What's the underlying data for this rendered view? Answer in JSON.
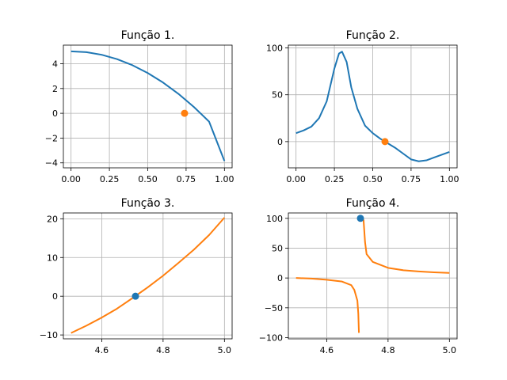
{
  "colors": {
    "blue": "#1f77b4",
    "orange": "#ff7f0e",
    "grid": "#b0b0b0"
  },
  "chart_data": [
    {
      "type": "line",
      "title": "Função 1.",
      "xlim": [
        -0.05,
        1.05
      ],
      "ylim": [
        -4.4,
        5.5
      ],
      "grid": true,
      "x_ticks": [
        0.0,
        0.25,
        0.5,
        0.75,
        1.0
      ],
      "x_tick_labels": [
        "0.00",
        "0.25",
        "0.50",
        "0.75",
        "1.00"
      ],
      "y_ticks": [
        -4,
        -2,
        0,
        2,
        4
      ],
      "y_tick_labels": [
        "−4",
        "−2",
        "0",
        "2",
        "4"
      ],
      "series": [
        {
          "color": "blue",
          "points": [
            [
              0,
              5.0
            ],
            [
              0.1,
              4.93
            ],
            [
              0.2,
              4.72
            ],
            [
              0.3,
              4.37
            ],
            [
              0.4,
              3.88
            ],
            [
              0.5,
              3.25
            ],
            [
              0.6,
              2.48
            ],
            [
              0.7,
              1.57
            ],
            [
              0.8,
              0.52
            ],
            [
              0.9,
              -0.67
            ],
            [
              1.0,
              -3.85
            ]
          ]
        }
      ],
      "markers": [
        {
          "x": 0.74,
          "y": 0.0,
          "color": "orange"
        }
      ]
    },
    {
      "type": "line",
      "title": "Função 2.",
      "xlim": [
        -0.05,
        1.05
      ],
      "ylim": [
        -28,
        103
      ],
      "grid": true,
      "x_ticks": [
        0.0,
        0.25,
        0.5,
        0.75,
        1.0
      ],
      "x_tick_labels": [
        "0.00",
        "0.25",
        "0.50",
        "0.75",
        "1.00"
      ],
      "y_ticks": [
        0,
        50,
        100
      ],
      "y_tick_labels": [
        "0",
        "50",
        "100"
      ],
      "series": [
        {
          "color": "blue",
          "points": [
            [
              0,
              9
            ],
            [
              0.05,
              12
            ],
            [
              0.1,
              16
            ],
            [
              0.15,
              25
            ],
            [
              0.2,
              43
            ],
            [
              0.25,
              78
            ],
            [
              0.28,
              94
            ],
            [
              0.3,
              96
            ],
            [
              0.33,
              85
            ],
            [
              0.36,
              58
            ],
            [
              0.4,
              35
            ],
            [
              0.45,
              17
            ],
            [
              0.5,
              9
            ],
            [
              0.55,
              3
            ],
            [
              0.58,
              0
            ],
            [
              0.65,
              -7
            ],
            [
              0.7,
              -13
            ],
            [
              0.75,
              -19
            ],
            [
              0.8,
              -21
            ],
            [
              0.85,
              -20
            ],
            [
              0.9,
              -17
            ],
            [
              0.95,
              -14
            ],
            [
              1.0,
              -11
            ]
          ]
        }
      ],
      "markers": [
        {
          "x": 0.58,
          "y": 0.0,
          "color": "orange"
        }
      ]
    },
    {
      "type": "line",
      "title": "Função 3.",
      "xlim": [
        4.475,
        5.025
      ],
      "ylim": [
        -11,
        21.5
      ],
      "grid": true,
      "x_ticks": [
        4.6,
        4.8,
        5.0
      ],
      "x_tick_labels": [
        "4.6",
        "4.8",
        "5.0"
      ],
      "y_ticks": [
        -10,
        0,
        10,
        20
      ],
      "y_tick_labels": [
        "−10",
        "0",
        "10",
        "20"
      ],
      "series": [
        {
          "color": "orange",
          "points": [
            [
              4.5,
              -9.5
            ],
            [
              4.55,
              -7.6
            ],
            [
              4.6,
              -5.5
            ],
            [
              4.65,
              -3.2
            ],
            [
              4.7,
              -0.5
            ],
            [
              4.75,
              2.3
            ],
            [
              4.8,
              5.3
            ],
            [
              4.85,
              8.6
            ],
            [
              4.9,
              12.0
            ],
            [
              4.95,
              15.8
            ],
            [
              5.0,
              20.3
            ]
          ]
        }
      ],
      "markers": [
        {
          "x": 4.71,
          "y": 0.0,
          "color": "blue"
        }
      ]
    },
    {
      "type": "line",
      "title": "Função 4.",
      "xlim": [
        4.475,
        5.025
      ],
      "ylim": [
        -102,
        109
      ],
      "grid": true,
      "x_ticks": [
        4.6,
        4.8,
        5.0
      ],
      "x_tick_labels": [
        "4.6",
        "4.8",
        "5.0"
      ],
      "y_ticks": [
        -100,
        -50,
        0,
        50,
        100
      ],
      "y_tick_labels": [
        "−100",
        "−50",
        "0",
        "50",
        "100"
      ],
      "series": [
        {
          "color": "orange",
          "points": [
            [
              4.5,
              0
            ],
            [
              4.55,
              -1
            ],
            [
              4.6,
              -3
            ],
            [
              4.65,
              -6
            ],
            [
              4.68,
              -12
            ],
            [
              4.69,
              -20
            ],
            [
              4.7,
              -38
            ],
            [
              4.703,
              -60
            ],
            [
              4.705,
              -92
            ]
          ]
        },
        {
          "color": "orange",
          "points": [
            [
              4.72,
              98
            ],
            [
              4.725,
              60
            ],
            [
              4.73,
              40
            ],
            [
              4.75,
              27
            ],
            [
              4.8,
              17
            ],
            [
              4.85,
              13
            ],
            [
              4.9,
              11
            ],
            [
              4.95,
              9.5
            ],
            [
              5.0,
              8.5
            ]
          ]
        }
      ],
      "markers": [
        {
          "x": 4.71,
          "y": 100,
          "color": "blue"
        }
      ]
    }
  ]
}
